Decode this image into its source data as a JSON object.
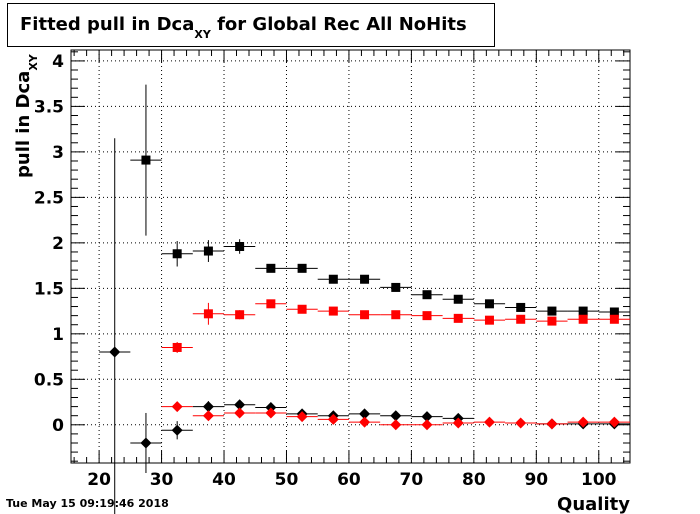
{
  "title": {
    "main": "Fitted pull in Dca",
    "sub": "XY",
    "rest": " for Global Rec All NoHits"
  },
  "date": "Tue May 15 09:19:46 2018",
  "chart_data": {
    "type": "scatter",
    "xlabel": "Quality",
    "ylabel_main": "pull in Dca",
    "ylabel_sub": "XY",
    "xlim": [
      15.5,
      105
    ],
    "ylim": [
      -0.42,
      4.12
    ],
    "xticks": [
      20,
      30,
      40,
      50,
      60,
      70,
      80,
      90,
      100
    ],
    "yticks": [
      0,
      0.5,
      1,
      1.5,
      2,
      2.5,
      3,
      3.5,
      4
    ],
    "grid": true,
    "bin_width": 5,
    "series": [
      {
        "marker": "square",
        "color": "#000000",
        "x": [
          27.5,
          32.5,
          37.5,
          42.5,
          47.5,
          52.5,
          57.5,
          62.5,
          67.5,
          72.5,
          77.5,
          82.5,
          87.5,
          92.5,
          97.5,
          102.5
        ],
        "y": [
          2.91,
          1.88,
          1.91,
          1.96,
          1.72,
          1.72,
          1.6,
          1.6,
          1.51,
          1.43,
          1.38,
          1.33,
          1.29,
          1.25,
          1.25,
          1.24
        ],
        "err": [
          0.83,
          0.14,
          0.12,
          0.08,
          0.04,
          0.03,
          0.03,
          0.02,
          0.02,
          0.02,
          0.02,
          0.02,
          0.02,
          0.02,
          0.02,
          0.02
        ]
      },
      {
        "marker": "square",
        "color": "#ff0000",
        "x": [
          32.5,
          37.5,
          42.5,
          47.5,
          52.5,
          57.5,
          62.5,
          67.5,
          72.5,
          77.5,
          82.5,
          87.5,
          92.5,
          97.5,
          102.5
        ],
        "y": [
          0.85,
          1.22,
          1.21,
          1.33,
          1.27,
          1.25,
          1.21,
          1.21,
          1.2,
          1.17,
          1.15,
          1.16,
          1.14,
          1.16,
          1.16
        ],
        "err": [
          0.06,
          0.12,
          0.05,
          0.04,
          0.03,
          0.03,
          0.02,
          0.02,
          0.02,
          0.02,
          0.02,
          0.02,
          0.02,
          0.02,
          0.02
        ]
      },
      {
        "marker": "diamond",
        "color": "#000000",
        "x": [
          22.5,
          27.5,
          32.5,
          37.5,
          42.5,
          47.5,
          52.5,
          57.5,
          62.5,
          67.5,
          72.5,
          77.5,
          92.5,
          97.5,
          102.5
        ],
        "y": [
          0.8,
          -0.2,
          -0.06,
          0.2,
          0.22,
          0.19,
          0.12,
          0.1,
          0.12,
          0.1,
          0.09,
          0.07,
          0.01,
          0.01,
          0.01
        ],
        "err": [
          2.35,
          0.33,
          0.1,
          0.06,
          0.04,
          0.03,
          0.02,
          0.02,
          0.02,
          0.02,
          0.02,
          0.02,
          0.02,
          0.02,
          0.02
        ]
      },
      {
        "marker": "diamond",
        "color": "#ff0000",
        "x": [
          32.5,
          37.5,
          42.5,
          47.5,
          52.5,
          57.5,
          62.5,
          67.5,
          72.5,
          77.5,
          82.5,
          87.5,
          92.5,
          97.5,
          102.5
        ],
        "y": [
          0.2,
          0.1,
          0.13,
          0.13,
          0.09,
          0.06,
          0.03,
          0.0,
          0.0,
          0.02,
          0.03,
          0.02,
          0.01,
          0.03,
          0.03
        ],
        "err": [
          0.05,
          0.04,
          0.03,
          0.03,
          0.02,
          0.02,
          0.02,
          0.02,
          0.02,
          0.02,
          0.02,
          0.02,
          0.02,
          0.02,
          0.02
        ]
      }
    ]
  }
}
